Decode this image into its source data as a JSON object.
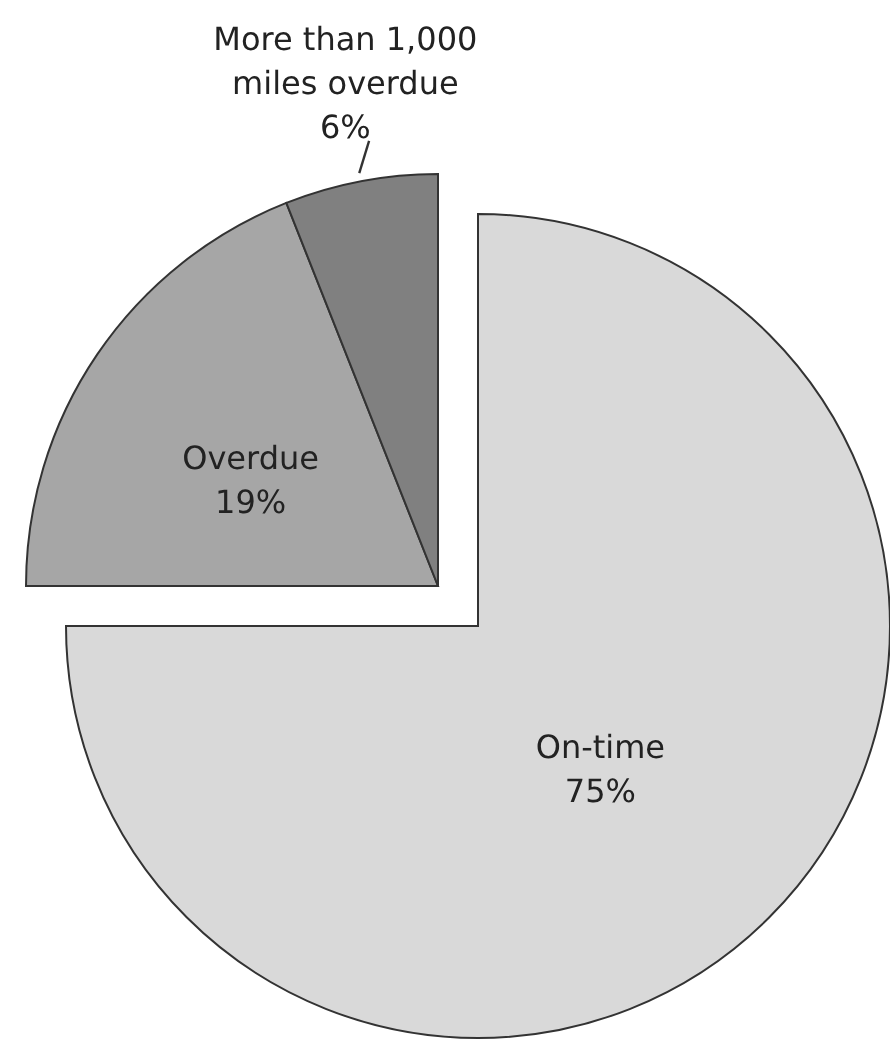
{
  "chart_data": {
    "type": "pie",
    "categories": [
      "On-time",
      "Overdue",
      "More than 1,000 miles overdue"
    ],
    "values": [
      75,
      19,
      6
    ],
    "colors": [
      "#d9d9d9",
      "#a6a6a6",
      "#808080"
    ],
    "value_labels": [
      "75%",
      "19%",
      "6%"
    ]
  }
}
